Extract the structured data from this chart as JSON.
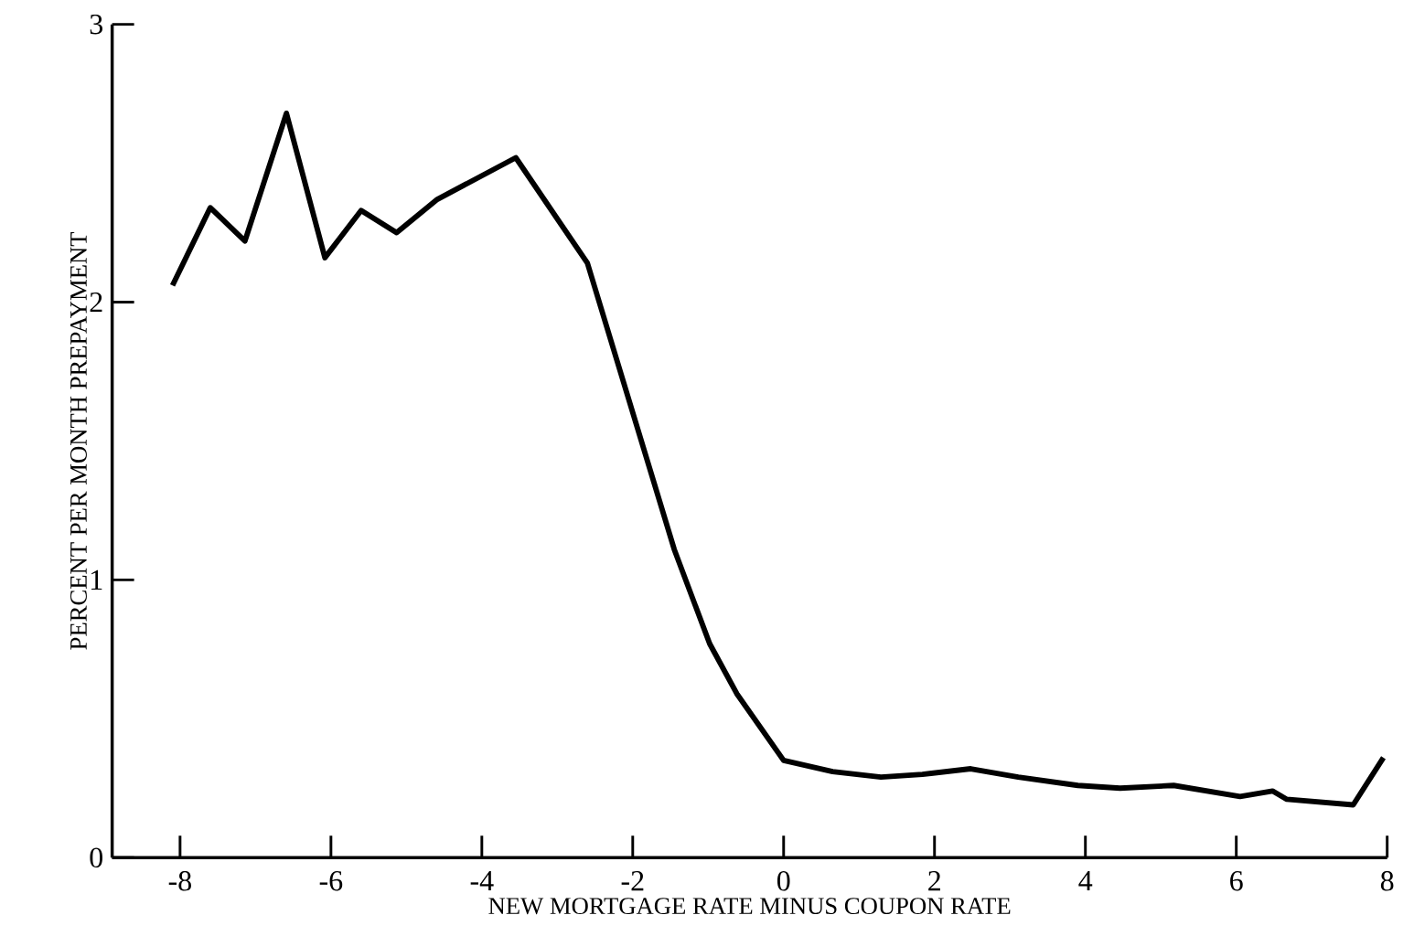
{
  "chart_data": {
    "type": "line",
    "xlabel": "NEW MORTGAGE RATE MINUS COUPON RATE",
    "ylabel": "PERCENT PER MONTH PREPAYMENT",
    "x": [
      -8.1,
      -7.6,
      -7.14,
      -6.59,
      -6.08,
      -5.6,
      -5.13,
      -4.59,
      -3.55,
      -2.6,
      -1.45,
      -0.98,
      -0.62,
      0,
      0.65,
      1.29,
      1.84,
      2.48,
      3.11,
      3.9,
      4.46,
      5.17,
      6.05,
      6.48,
      6.67,
      7.55,
      7.95
    ],
    "series": [
      {
        "color": "#000000",
        "values": [
          2.06,
          2.34,
          2.22,
          2.68,
          2.16,
          2.33,
          2.25,
          2.37,
          2.52,
          2.14,
          1.11,
          0.77,
          0.59,
          0.35,
          0.31,
          0.29,
          0.3,
          0.32,
          0.29,
          0.26,
          0.25,
          0.26,
          0.22,
          0.24,
          0.21,
          0.19,
          0.36
        ]
      }
    ],
    "xlim": [
      -8.9,
      8
    ],
    "ylim": [
      0,
      3
    ],
    "xticks": [
      -8,
      -6,
      -4,
      -2,
      0,
      2,
      4,
      6,
      8
    ],
    "yticks": [
      0,
      1,
      2,
      3
    ],
    "marker": "none",
    "line_style": "solid"
  }
}
